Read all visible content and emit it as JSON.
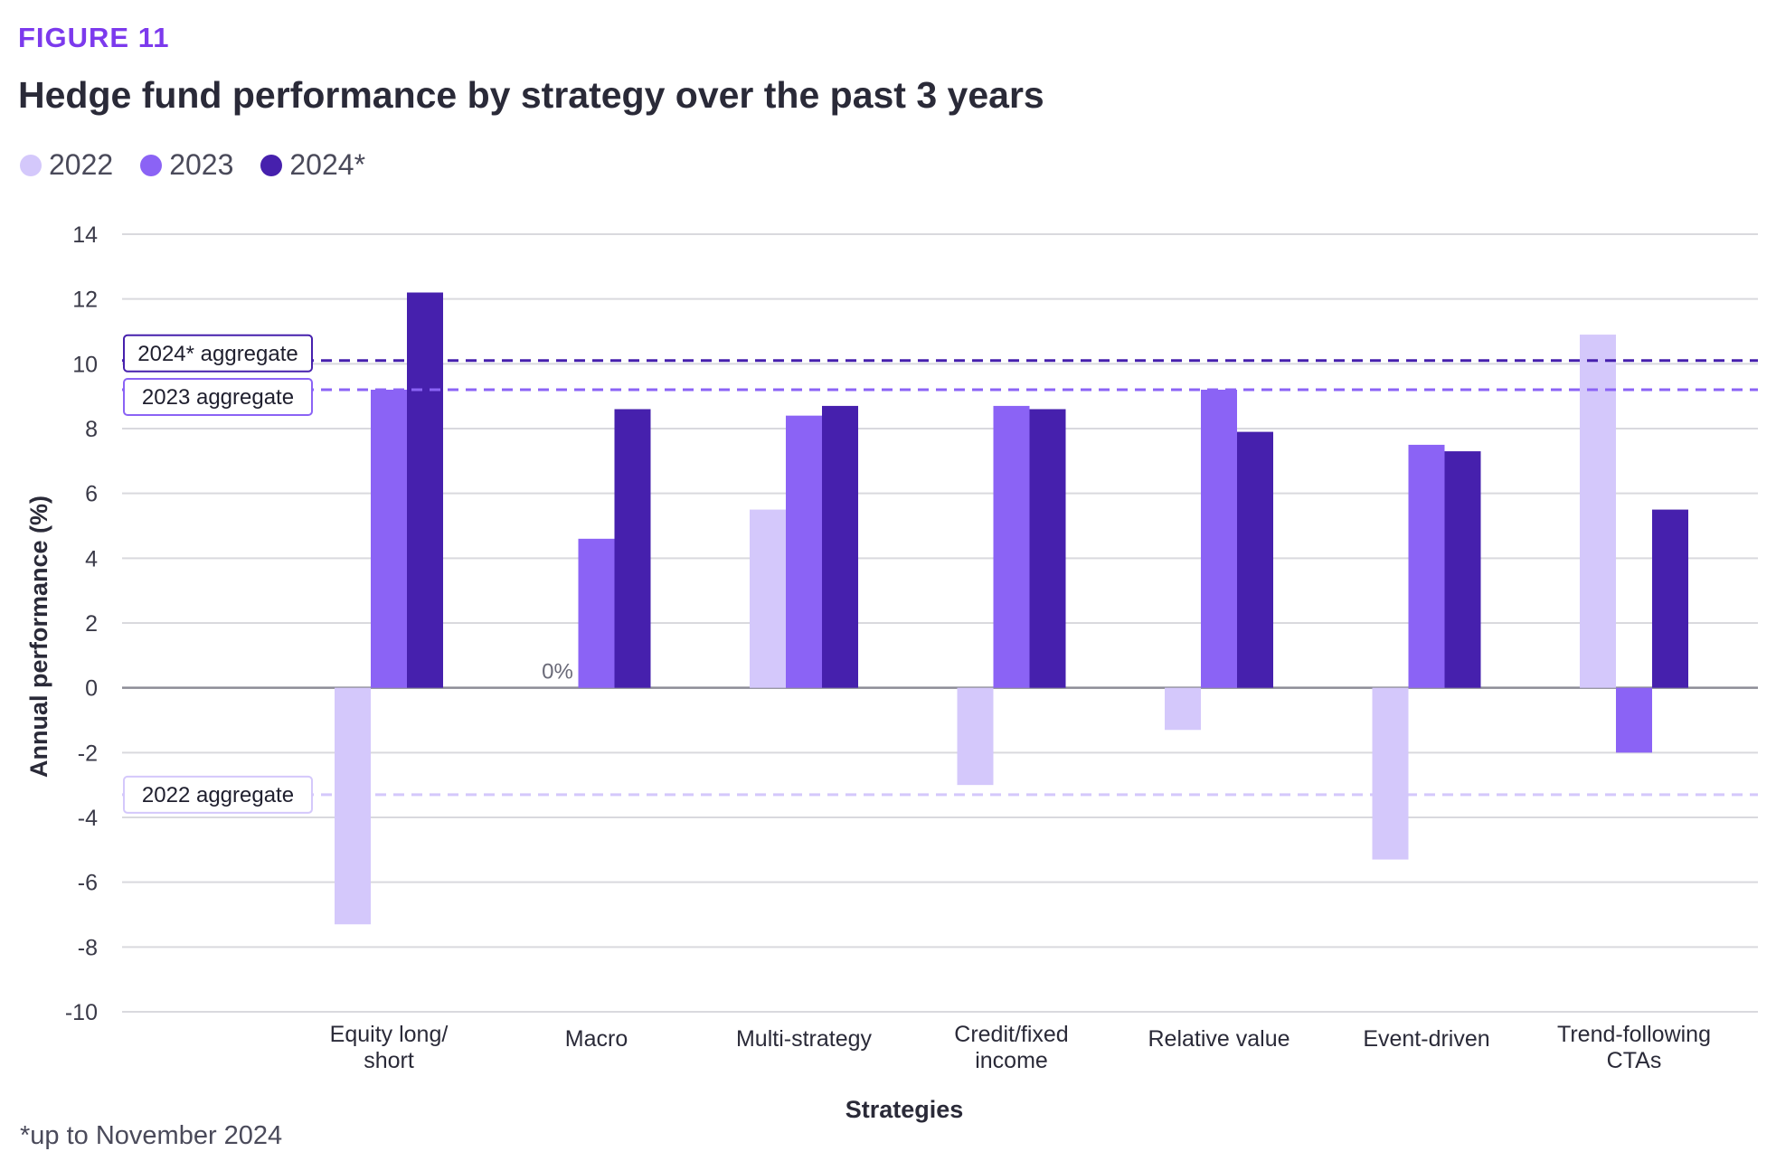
{
  "figure_label": "FIGURE 11",
  "title": "Hedge fund performance by strategy over the past 3 years",
  "footnote": "*up to November 2024",
  "colors": {
    "2022": "#d4c8fb",
    "2023": "#8b63f5",
    "2024": "#4620ad",
    "grid": "#d9d9de",
    "zero": "#8c8c96"
  },
  "chart_data": {
    "type": "bar",
    "xlabel": "Strategies",
    "ylabel": "Annual performance (%)",
    "ylim": [
      -10,
      14
    ],
    "yticks": [
      14,
      12,
      10,
      8,
      6,
      4,
      2,
      0,
      -2,
      -4,
      -6,
      -8,
      -10
    ],
    "grid": true,
    "legend_position": "top-left",
    "categories": [
      [
        "Equity long/",
        "short"
      ],
      [
        "Macro"
      ],
      [
        "Multi-strategy"
      ],
      [
        "Credit/fixed",
        "income"
      ],
      [
        "Relative value"
      ],
      [
        "Event-driven"
      ],
      [
        "Trend-following",
        "CTAs"
      ]
    ],
    "series": [
      {
        "name": "2022",
        "color_key": "2022",
        "values": [
          -7.3,
          0,
          5.5,
          -3.0,
          -1.3,
          -5.3,
          10.9
        ]
      },
      {
        "name": "2023",
        "color_key": "2023",
        "values": [
          9.2,
          4.6,
          8.4,
          8.7,
          9.2,
          7.5,
          -2.0
        ]
      },
      {
        "name": "2024*",
        "color_key": "2024",
        "values": [
          12.2,
          8.6,
          8.7,
          8.6,
          7.9,
          7.3,
          5.5
        ]
      }
    ],
    "annotations": [
      {
        "text": "0%",
        "category_index": 1,
        "series_index": 0
      }
    ],
    "reference_lines": [
      {
        "label": "2024* aggregate",
        "value": 10.1,
        "color_key": "2024"
      },
      {
        "label": "2023 aggregate",
        "value": 9.2,
        "color_key": "2023"
      },
      {
        "label": "2022 aggregate",
        "value": -3.3,
        "color_key": "2022"
      }
    ]
  }
}
